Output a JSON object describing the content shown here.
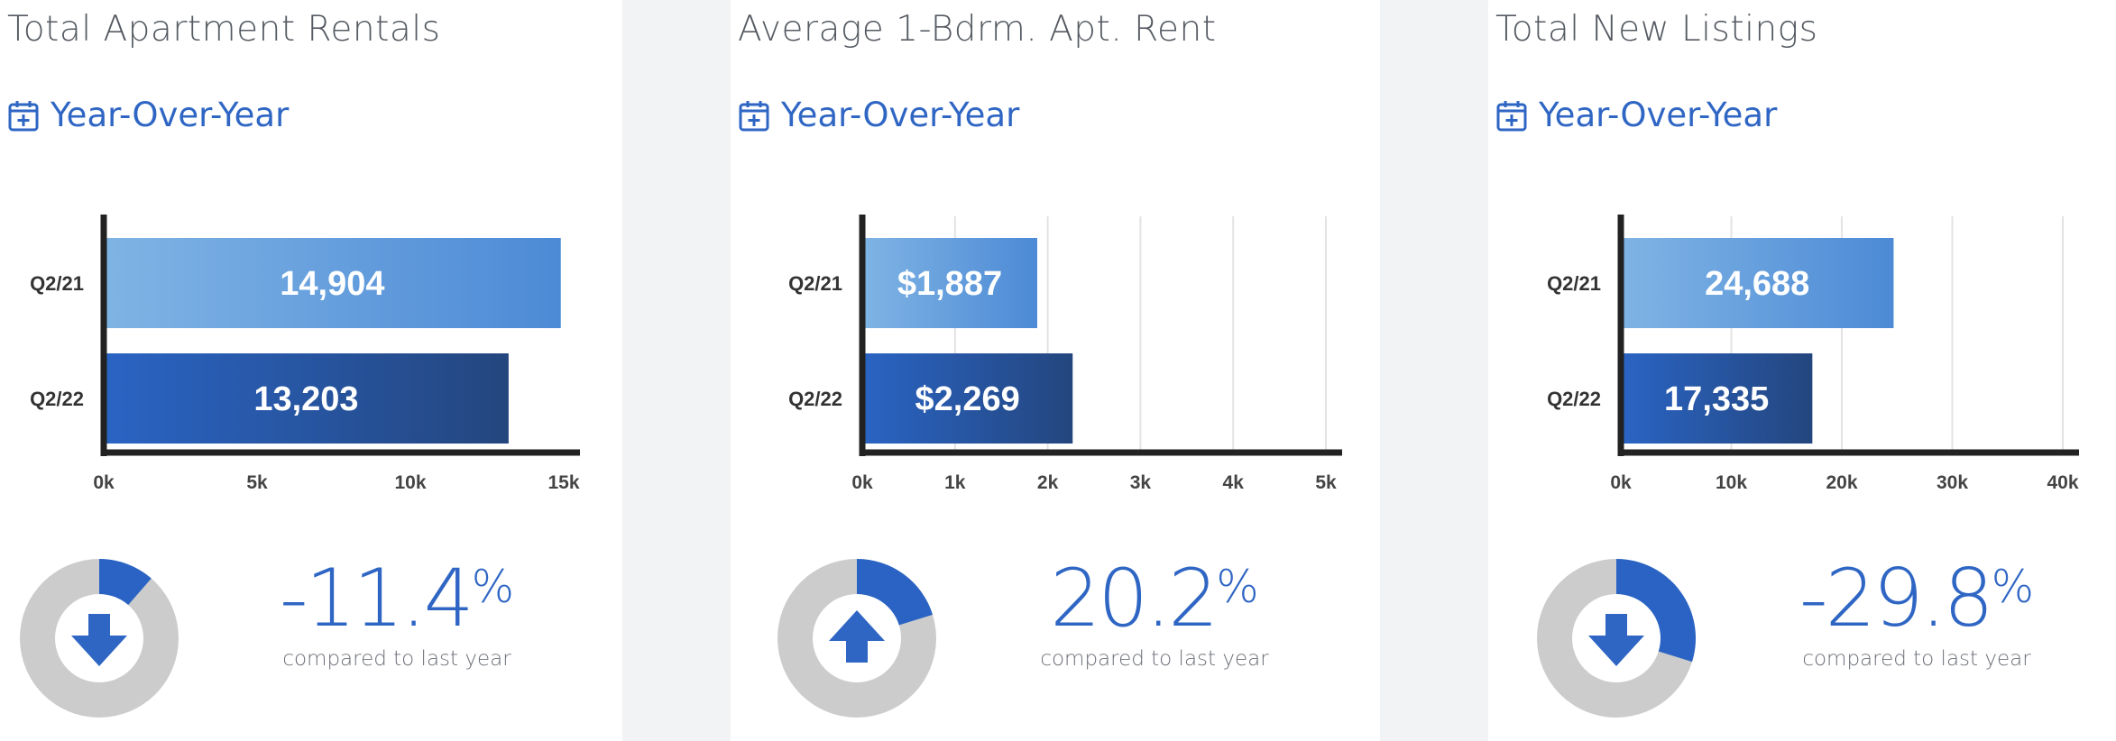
{
  "panels": [
    {
      "title": "Total Apartment Rentals",
      "period_label": "Year-Over-Year",
      "change_number": "-11.4",
      "change_sign": "%",
      "change_caption": "compared to last year",
      "change_fraction": 0.114,
      "direction": "down",
      "icon_names": {
        "period": "calendar-plus-icon",
        "direction": "arrow-down-icon"
      }
    },
    {
      "title": "Average 1-Bdrm. Apt. Rent",
      "period_label": "Year-Over-Year",
      "change_number": "20.2",
      "change_sign": "%",
      "change_caption": "compared to last year",
      "change_fraction": 0.202,
      "direction": "up",
      "icon_names": {
        "period": "calendar-plus-icon",
        "direction": "arrow-up-icon"
      }
    },
    {
      "title": "Total New Listings",
      "period_label": "Year-Over-Year",
      "change_number": "-29.8",
      "change_sign": "%",
      "change_caption": "compared to last year",
      "change_fraction": 0.298,
      "direction": "down",
      "icon_names": {
        "period": "calendar-plus-icon",
        "direction": "arrow-down-icon"
      }
    }
  ],
  "chart_data": [
    {
      "type": "bar",
      "orientation": "horizontal",
      "categories": [
        "Q2/21",
        "Q2/22"
      ],
      "values": [
        14904,
        13203
      ],
      "value_labels": [
        "14,904",
        "13,203"
      ],
      "xticks": [
        "0k",
        "5k",
        "10k",
        "15k"
      ],
      "xlim": [
        0,
        15000
      ],
      "grid": false
    },
    {
      "type": "bar",
      "orientation": "horizontal",
      "categories": [
        "Q2/21",
        "Q2/22"
      ],
      "values": [
        1887,
        2269
      ],
      "value_labels": [
        "$1,887",
        "$2,269"
      ],
      "xticks": [
        "0k",
        "1k",
        "2k",
        "3k",
        "4k",
        "5k"
      ],
      "xlim": [
        0,
        5000
      ],
      "grid": true
    },
    {
      "type": "bar",
      "orientation": "horizontal",
      "categories": [
        "Q2/21",
        "Q2/22"
      ],
      "values": [
        24688,
        17335
      ],
      "value_labels": [
        "24,688",
        "17,335"
      ],
      "xticks": [
        "0k",
        "10k",
        "20k",
        "30k",
        "40k"
      ],
      "xlim": [
        0,
        40000
      ],
      "grid": true
    }
  ],
  "colors": {
    "accent": "#2f66c4",
    "bar_light_start": "#7fb4e4",
    "bar_light_end": "#4d8ad6",
    "bar_dark_start": "#2a64c4",
    "bar_dark_end": "#24467e",
    "donut_track": "#cccccc",
    "donut_fill": "#2a63c3"
  }
}
